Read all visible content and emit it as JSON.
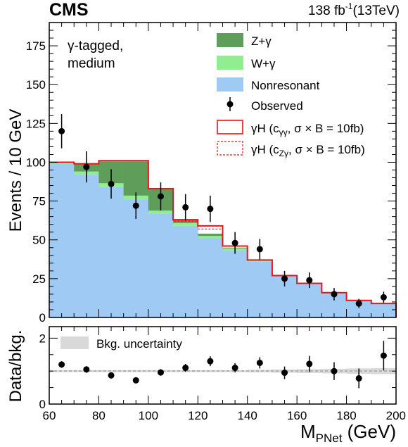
{
  "header": {
    "experiment": "CMS",
    "lumi_main": "138 fb",
    "lumi_sup": "-1",
    "lumi_energy": "(13TeV)"
  },
  "annotation": {
    "line1": "γ-tagged,",
    "line2": "medium"
  },
  "colors": {
    "zgamma": "#5f9e5a",
    "wgamma": "#90ee90",
    "nonres": "#9fcaf3",
    "signal": "#e8141c",
    "observed": "#000000",
    "band": "#d9d9d9"
  },
  "legend": {
    "z": "Z+γ",
    "w": "W+γ",
    "nonres": "Nonresonant",
    "obs": "Observed",
    "sig1_pre": "γH (c",
    "sig1_sub": "γγ",
    "sig1_post": ",  σ × B = 10fb)",
    "sig2_pre": "γH (c",
    "sig2_sub": "Zγ",
    "sig2_post": ",  σ × B = 10fb)",
    "bkg_unc": "Bkg. uncertainty"
  },
  "chart_data": [
    {
      "type": "bar",
      "stacked": true,
      "bin_edges": [
        60,
        70,
        80,
        90,
        100,
        110,
        120,
        130,
        140,
        150,
        160,
        170,
        180,
        190,
        200
      ],
      "series": [
        {
          "name": "Nonresonant",
          "values": [
            99,
            92,
            84,
            76,
            67,
            59,
            51,
            43,
            36,
            27,
            22,
            16,
            11,
            9
          ]
        },
        {
          "name": "W+γ",
          "values": [
            0.8,
            2.0,
            2.5,
            2.5,
            1.8,
            1.8,
            1.5,
            1.5,
            1.0,
            0.5,
            0.3,
            0.3,
            0.2,
            0.1
          ]
        },
        {
          "name": "Z+γ",
          "values": [
            0.2,
            5.0,
            14.0,
            22.0,
            14.0,
            2.2,
            1.5,
            0.5,
            0.0,
            0.0,
            0.0,
            0.0,
            0.0,
            0.0
          ]
        }
      ],
      "signal": [
        {
          "name": "γH (cγγ, σ × B = 10fb)",
          "style": "solid",
          "values": [
            100,
            99,
            101,
            101,
            83,
            63,
            59,
            46,
            37,
            27,
            22,
            16,
            11,
            9
          ]
        },
        {
          "name": "γH (cZγ, σ × B = 10fb)",
          "style": "dashed",
          "values": [
            100,
            99,
            101,
            101,
            83,
            62,
            57,
            46,
            37,
            27,
            22,
            16,
            11,
            9
          ]
        }
      ],
      "observed": {
        "name": "Observed",
        "x": [
          65,
          75,
          85,
          95,
          105,
          115,
          125,
          135,
          145,
          155,
          165,
          175,
          185,
          195
        ],
        "y": [
          120,
          97,
          86,
          72,
          78,
          71,
          70,
          48,
          44,
          25,
          24,
          15,
          9,
          13
        ],
        "err": [
          11,
          10,
          9.5,
          8.5,
          9,
          8.5,
          8.5,
          7,
          6.6,
          5,
          5,
          4,
          3,
          3.6
        ]
      },
      "xlim": [
        60,
        200
      ],
      "ylim": [
        0,
        190
      ],
      "yticks": [
        0,
        25,
        50,
        75,
        100,
        125,
        150,
        175
      ],
      "ylabel": "Events / 10 GeV"
    },
    {
      "type": "scatter",
      "name": "ratio",
      "x": [
        65,
        75,
        85,
        95,
        105,
        115,
        125,
        135,
        145,
        155,
        165,
        175,
        185,
        195
      ],
      "y": [
        1.2,
        1.05,
        0.87,
        0.72,
        0.96,
        1.1,
        1.3,
        1.1,
        1.25,
        0.95,
        1.22,
        1.0,
        0.78,
        1.47
      ],
      "err": [
        0.1,
        0.1,
        0.08,
        0.08,
        0.1,
        0.12,
        0.15,
        0.14,
        0.17,
        0.19,
        0.24,
        0.27,
        0.3,
        0.45
      ],
      "band_halfwidth": [
        0.03,
        0.03,
        0.03,
        0.03,
        0.03,
        0.03,
        0.03,
        0.03,
        0.04,
        0.05,
        0.06,
        0.07,
        0.08,
        0.09
      ],
      "xlim": [
        60,
        200
      ],
      "ylim": [
        0,
        2.35
      ],
      "yticks": [
        0,
        2
      ],
      "xticks": [
        60,
        80,
        100,
        120,
        140,
        160,
        180,
        200
      ],
      "ylabel": "Data/bkg.",
      "xlabel_main": "M",
      "xlabel_sub": "PNet",
      "xlabel_unit": " (GeV)"
    }
  ]
}
